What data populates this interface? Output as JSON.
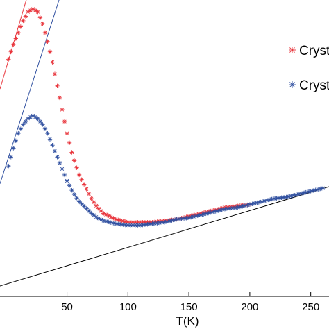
{
  "chart_data": {
    "type": "scatter",
    "xlabel": "T(K)",
    "ylabel": "",
    "xlim": [
      -5,
      265
    ],
    "ylim": [
      0,
      1
    ],
    "x_ticks": [
      50,
      100,
      150,
      200,
      250
    ],
    "x_tick_labels": [
      "50",
      "100",
      "150",
      "200",
      "250"
    ],
    "legend_position": "right",
    "legend": [
      {
        "label": "Crysta",
        "color": "#e8333a",
        "marker": "asterisk"
      },
      {
        "label": "Crysta",
        "color": "#3050a0",
        "marker": "asterisk"
      }
    ],
    "series": [
      {
        "name": "Crysta",
        "color": "#e8333a",
        "x": [
          2,
          6,
          10,
          14,
          18,
          22,
          26,
          30,
          34,
          38,
          42,
          46,
          50,
          55,
          60,
          65,
          70,
          75,
          80,
          90,
          100,
          110,
          120,
          130,
          140,
          150,
          160,
          170,
          180,
          190,
          200
        ],
        "y": [
          0.8,
          0.85,
          0.89,
          0.93,
          0.96,
          0.97,
          0.96,
          0.92,
          0.86,
          0.79,
          0.71,
          0.63,
          0.55,
          0.47,
          0.41,
          0.37,
          0.33,
          0.3,
          0.28,
          0.26,
          0.25,
          0.25,
          0.25,
          0.255,
          0.26,
          0.27,
          0.28,
          0.29,
          0.3,
          0.305,
          0.31
        ]
      },
      {
        "name": "Crysta",
        "color": "#3050a0",
        "x": [
          2,
          6,
          10,
          14,
          18,
          22,
          26,
          30,
          34,
          38,
          42,
          46,
          50,
          55,
          60,
          65,
          70,
          75,
          80,
          90,
          100,
          110,
          120,
          130,
          140,
          150,
          160,
          170,
          180,
          190,
          200,
          210,
          220,
          230,
          240,
          250,
          260
        ],
        "y": [
          0.44,
          0.5,
          0.55,
          0.58,
          0.6,
          0.61,
          0.6,
          0.58,
          0.55,
          0.51,
          0.47,
          0.43,
          0.39,
          0.35,
          0.32,
          0.3,
          0.28,
          0.265,
          0.255,
          0.245,
          0.24,
          0.24,
          0.245,
          0.25,
          0.26,
          0.265,
          0.275,
          0.285,
          0.295,
          0.3,
          0.31,
          0.32,
          0.33,
          0.335,
          0.345,
          0.355,
          0.365
        ]
      }
    ],
    "fit_lines": [
      {
        "color": "#e8333a",
        "x": [
          -5,
          18
        ],
        "y": [
          0.7,
          1.02
        ]
      },
      {
        "color": "#3050a0",
        "x": [
          -5,
          45
        ],
        "y": [
          0.38,
          1.02
        ]
      },
      {
        "color": "#000000",
        "x": [
          -5,
          265
        ],
        "y": [
          0.035,
          0.37
        ]
      }
    ]
  }
}
